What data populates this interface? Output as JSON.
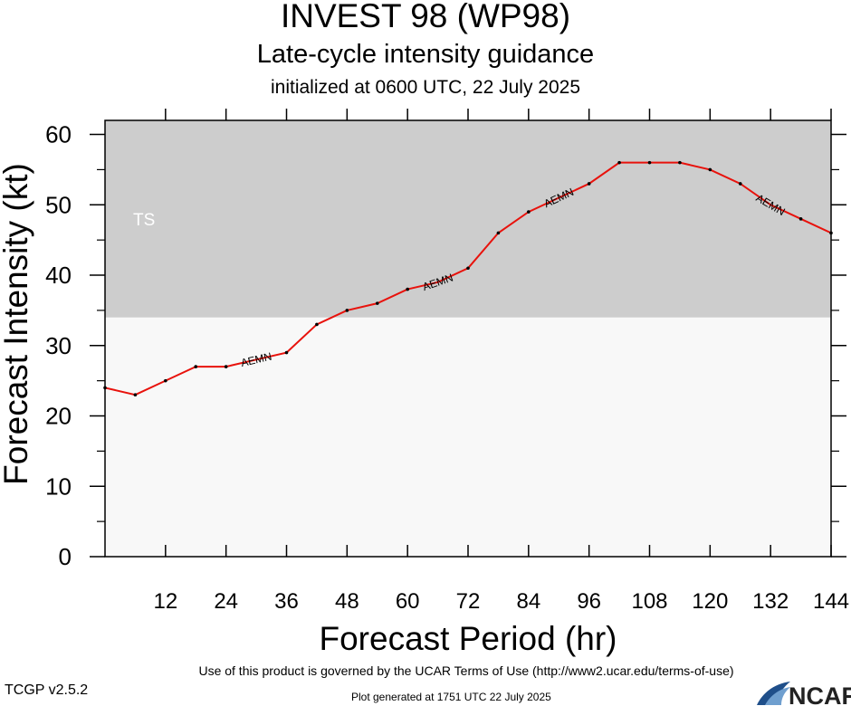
{
  "header": {
    "title": "INVEST 98 (WP98)",
    "subtitle": "Late-cycle intensity guidance",
    "init": "initialized at 0600 UTC, 22 July 2025"
  },
  "chart_data": {
    "type": "line",
    "xlabel": "Forecast Period (hr)",
    "ylabel": "Forecast Intensity (kt)",
    "xlim": [
      0,
      144
    ],
    "ylim": [
      0,
      62
    ],
    "xticks": [
      12,
      24,
      36,
      48,
      60,
      72,
      84,
      96,
      108,
      120,
      132,
      144
    ],
    "yticks": [
      0,
      10,
      20,
      30,
      40,
      50,
      60
    ],
    "threshold": {
      "label": "TS",
      "value": 34
    },
    "series": [
      {
        "name": "AEMN",
        "color": "#e8120c",
        "x": [
          0,
          6,
          12,
          18,
          24,
          30,
          36,
          42,
          48,
          54,
          60,
          66,
          72,
          78,
          84,
          90,
          96,
          102,
          108,
          114,
          120,
          126,
          132,
          138,
          144
        ],
        "values": [
          24,
          23,
          25,
          27,
          27,
          28,
          29,
          33,
          35,
          36,
          38,
          39,
          41,
          46,
          49,
          51,
          53,
          56,
          56,
          56,
          55,
          53,
          50,
          48,
          46
        ]
      }
    ],
    "series_label_x": [
      30,
      66,
      90,
      132
    ],
    "colors": {
      "ts_band": "#cdcdcd",
      "background": "#f8f8f8"
    }
  },
  "footer": {
    "terms": "Use of this product is governed by the UCAR Terms of Use (http://www2.ucar.edu/terms-of-use)",
    "version": "TCGP v2.5.2",
    "generated": "Plot generated at 1751 UTC   22 July 2025",
    "logo": "NCAR"
  }
}
